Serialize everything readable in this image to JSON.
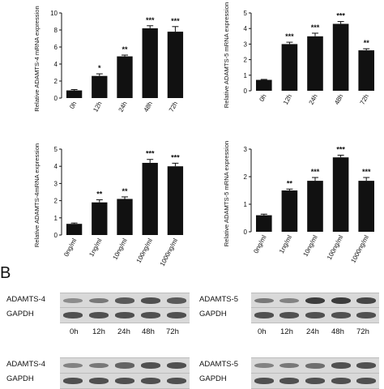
{
  "panel_label": "B",
  "chart_data": [
    {
      "type": "bar",
      "ylabel": "Relative ADAMTS-4 mRNA expression",
      "categories": [
        "0h",
        "12h",
        "24h",
        "48h",
        "72h"
      ],
      "values": [
        0.9,
        2.6,
        4.9,
        8.2,
        7.8
      ],
      "errors": [
        0.1,
        0.25,
        0.15,
        0.3,
        0.6
      ],
      "significance": [
        "",
        "*",
        "**",
        "***",
        "***"
      ],
      "ylim": [
        0,
        10
      ],
      "yticks": [
        "0",
        "2",
        "4",
        "6",
        "8",
        "10"
      ]
    },
    {
      "type": "bar",
      "ylabel": "Relative ADAMTS-5 mRNA expression",
      "categories": [
        "0h",
        "12h",
        "24h",
        "48h",
        "72h"
      ],
      "values": [
        0.7,
        3.0,
        3.5,
        4.3,
        2.6
      ],
      "errors": [
        0.03,
        0.12,
        0.2,
        0.15,
        0.1
      ],
      "significance": [
        "",
        "***",
        "***",
        "***",
        "**"
      ],
      "ylim": [
        0,
        5
      ],
      "yticks": [
        "0",
        "1",
        "2",
        "3",
        "4",
        "5"
      ]
    },
    {
      "type": "bar",
      "ylabel": "Relative ADAMTS-4mRNA expression",
      "categories": [
        "0ng/ml",
        "1ng/ml",
        "10ng/ml",
        "100ng/ml",
        "1000ng/ml"
      ],
      "values": [
        0.65,
        1.9,
        2.1,
        4.2,
        4.0
      ],
      "errors": [
        0.05,
        0.15,
        0.12,
        0.2,
        0.18
      ],
      "significance": [
        "",
        "**",
        "**",
        "***",
        "***"
      ],
      "ylim": [
        0,
        5
      ],
      "yticks": [
        "0",
        "1",
        "2",
        "3",
        "4",
        "5"
      ]
    },
    {
      "type": "bar",
      "ylabel": "Relative ADAMTS-5 mRNA expression",
      "categories": [
        "0ng/ml",
        "1ng/ml",
        "10ng/ml",
        "100ng/ml",
        "1000ng/ml"
      ],
      "values": [
        0.6,
        1.5,
        1.85,
        2.7,
        1.85
      ],
      "errors": [
        0.04,
        0.05,
        0.12,
        0.08,
        0.12
      ],
      "significance": [
        "",
        "**",
        "***",
        "***",
        "***"
      ],
      "ylim": [
        0,
        3
      ],
      "yticks": [
        "0",
        "1",
        "2",
        "3"
      ]
    }
  ],
  "blots": [
    {
      "rows": [
        {
          "label": "ADAMTS-4",
          "intensities": [
            0.45,
            0.55,
            0.7,
            0.75,
            0.7
          ]
        },
        {
          "label": "GAPDH",
          "intensities": [
            0.75,
            0.75,
            0.75,
            0.75,
            0.75
          ]
        }
      ],
      "times": [
        "0h",
        "12h",
        "24h",
        "48h",
        "72h"
      ]
    },
    {
      "rows": [
        {
          "label": "ADAMTS-5",
          "intensities": [
            0.55,
            0.5,
            0.85,
            0.85,
            0.8
          ]
        },
        {
          "label": "GAPDH",
          "intensities": [
            0.75,
            0.75,
            0.75,
            0.75,
            0.75
          ]
        }
      ],
      "times": [
        "0h",
        "12h",
        "24h",
        "48h",
        "72h"
      ]
    },
    {
      "rows": [
        {
          "label": "ADAMTS-4",
          "intensities": [
            0.5,
            0.55,
            0.65,
            0.75,
            0.75
          ]
        },
        {
          "label": "GAPDH",
          "intensities": [
            0.75,
            0.75,
            0.75,
            0.75,
            0.75
          ]
        }
      ]
    },
    {
      "rows": [
        {
          "label": "ADAMTS-5",
          "intensities": [
            0.5,
            0.55,
            0.6,
            0.75,
            0.75
          ]
        },
        {
          "label": "GAPDH",
          "intensities": [
            0.75,
            0.75,
            0.75,
            0.75,
            0.75
          ]
        }
      ]
    }
  ]
}
